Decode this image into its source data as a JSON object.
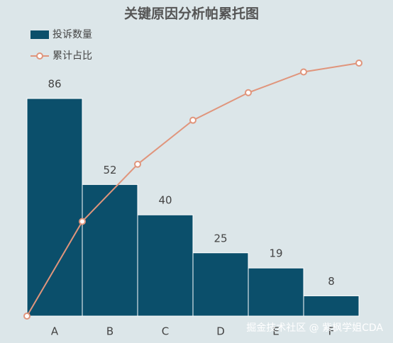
{
  "chart_data": {
    "type": "pareto",
    "title": "关键原因分析帕累托图",
    "categories": [
      "A",
      "B",
      "C",
      "D",
      "E",
      "F"
    ],
    "series": [
      {
        "name": "投诉数量",
        "color": "#0b4f6b",
        "values": [
          86,
          52,
          40,
          25,
          19,
          8
        ]
      },
      {
        "name": "累计占比",
        "color": "#e0957c",
        "axis": "y2",
        "x": [
          0,
          1,
          2,
          3,
          4,
          5,
          6
        ],
        "values": [
          0,
          37.4,
          60,
          77.4,
          88.3,
          96.5,
          100
        ]
      }
    ],
    "ylim": [
      0,
      100
    ],
    "y2lim": [
      0,
      100
    ],
    "xlim": [
      0,
      6
    ],
    "legend": "top-left",
    "watermark": "掘金技术社区 @ 紫枫学姐CDA"
  }
}
